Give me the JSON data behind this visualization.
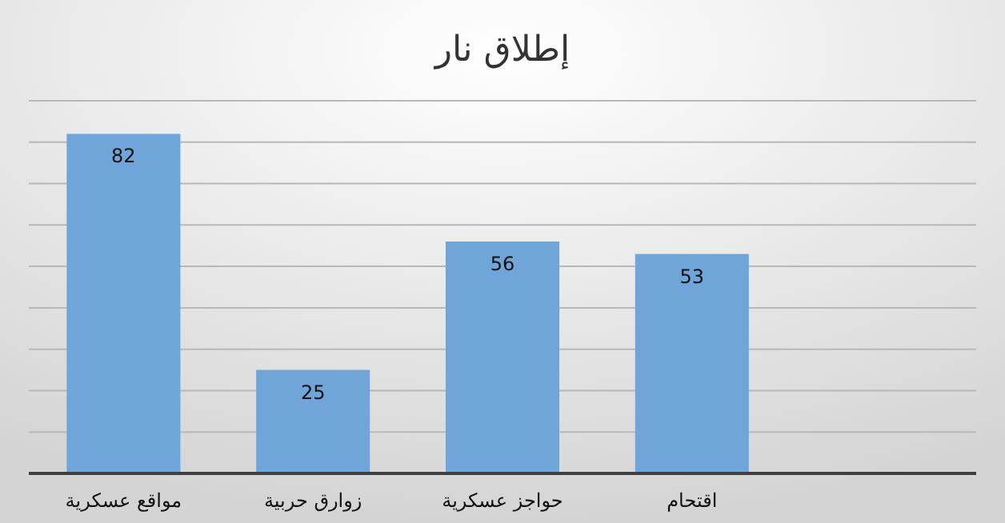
{
  "chart_data": {
    "type": "bar",
    "title": "إطلاق نار",
    "categories": [
      "مواقع عسكرية",
      "زوارق حربية",
      "حواجز عسكرية",
      "اقتحام",
      null
    ],
    "values": [
      82,
      25,
      56,
      53,
      null
    ],
    "color": "#6fa5d8",
    "ylim": [
      0,
      90
    ],
    "yticks": [
      {
        "value": 0,
        "label": null
      },
      {
        "value": 10,
        "label": null
      },
      {
        "value": 20,
        "label": null
      },
      {
        "value": 30,
        "label": null
      },
      {
        "value": 40,
        "label": null
      },
      {
        "value": 50,
        "label": null
      },
      {
        "value": 60,
        "label": null
      },
      {
        "value": 70,
        "label": null
      },
      {
        "value": 80,
        "label": null
      },
      {
        "value": 90,
        "label": null
      }
    ],
    "grid": true,
    "data_labels": true,
    "tick_labels": "x"
  }
}
